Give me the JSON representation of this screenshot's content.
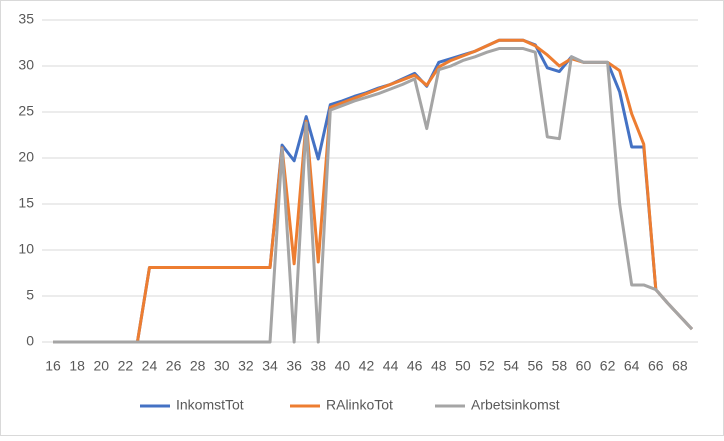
{
  "chart_data": {
    "type": "line",
    "x": [
      16,
      17,
      18,
      19,
      20,
      21,
      22,
      23,
      24,
      25,
      26,
      27,
      28,
      29,
      30,
      31,
      32,
      33,
      34,
      35,
      36,
      37,
      38,
      39,
      40,
      41,
      42,
      43,
      44,
      45,
      46,
      47,
      48,
      49,
      50,
      51,
      52,
      53,
      54,
      55,
      56,
      57,
      58,
      59,
      60,
      61,
      62,
      63,
      64,
      65,
      66,
      67,
      68,
      69
    ],
    "xlim": [
      15.5,
      69.5
    ],
    "xticks": [
      16,
      18,
      20,
      22,
      24,
      26,
      28,
      30,
      32,
      34,
      36,
      38,
      40,
      42,
      44,
      46,
      48,
      50,
      52,
      54,
      56,
      58,
      60,
      62,
      64,
      66,
      68
    ],
    "ylim": [
      0,
      35
    ],
    "yticks": [
      0,
      5,
      10,
      15,
      20,
      25,
      30,
      35
    ],
    "grid": true,
    "legend": "bottom",
    "series": [
      {
        "name": "InkomstTot",
        "color": "#4472c4",
        "values": [
          0,
          0,
          0,
          0,
          0,
          0,
          0,
          0,
          8.1,
          8.1,
          8.1,
          8.1,
          8.1,
          8.1,
          8.1,
          8.1,
          8.1,
          8.1,
          8.1,
          21.4,
          19.7,
          24.5,
          19.9,
          25.8,
          26.2,
          26.7,
          27.1,
          27.6,
          28.0,
          28.6,
          29.2,
          27.8,
          30.4,
          30.8,
          31.2,
          31.6,
          32.2,
          32.8,
          32.8,
          32.8,
          32.3,
          29.8,
          29.4,
          31.0,
          30.4,
          30.4,
          30.4,
          27.2,
          21.2,
          21.2,
          5.7,
          4.2,
          2.8,
          1.4
        ]
      },
      {
        "name": "RAlinkoTot",
        "color": "#ed7d31",
        "values": [
          0,
          0,
          0,
          0,
          0,
          0,
          0,
          0,
          8.1,
          8.1,
          8.1,
          8.1,
          8.1,
          8.1,
          8.1,
          8.1,
          8.1,
          8.1,
          8.1,
          21.1,
          8.5,
          24.0,
          8.7,
          25.5,
          26.0,
          26.5,
          27.0,
          27.5,
          28.0,
          28.5,
          29.0,
          27.9,
          29.9,
          30.6,
          31.1,
          31.6,
          32.2,
          32.8,
          32.8,
          32.8,
          32.2,
          31.2,
          30.0,
          30.8,
          30.4,
          30.4,
          30.4,
          29.5,
          24.8,
          21.5,
          5.7,
          4.2,
          2.8,
          1.4
        ]
      },
      {
        "name": "Arbetsinkomst",
        "color": "#a5a5a5",
        "values": [
          0,
          0,
          0,
          0,
          0,
          0,
          0,
          0,
          0,
          0,
          0,
          0,
          0,
          0,
          0,
          0,
          0,
          0,
          0,
          21.0,
          0,
          23.8,
          0,
          25.2,
          25.7,
          26.2,
          26.6,
          27.0,
          27.5,
          28.0,
          28.6,
          23.2,
          29.6,
          30.0,
          30.6,
          31.0,
          31.5,
          31.9,
          31.9,
          31.9,
          31.5,
          22.3,
          22.1,
          31.0,
          30.4,
          30.4,
          30.4,
          15.0,
          6.2,
          6.2,
          5.7,
          4.2,
          2.8,
          1.4
        ]
      }
    ]
  }
}
